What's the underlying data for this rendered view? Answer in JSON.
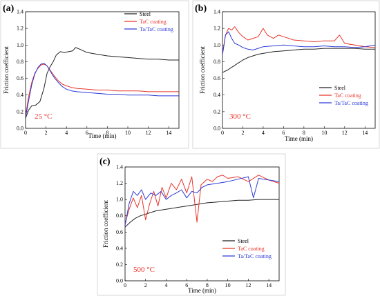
{
  "chart_data": [
    {
      "type": "line",
      "panel": "(a)",
      "xlabel": "Time (min)",
      "ylabel": "Friction coefficient",
      "xlim": [
        0,
        15
      ],
      "ylim": [
        0,
        1.4
      ],
      "xticks": [
        0,
        2,
        4,
        6,
        8,
        10,
        12,
        14
      ],
      "yticks": [
        0.0,
        0.2,
        0.4,
        0.6,
        0.8,
        1.0,
        1.2,
        1.4
      ],
      "annotation": "25 °C",
      "annotation_color": "#e8352b",
      "legend_position": "top-right",
      "series": [
        {
          "name": "Steel",
          "color": "#222222",
          "x": [
            0,
            0.3,
            0.6,
            1.0,
            1.4,
            1.8,
            2.1,
            2.4,
            2.7,
            3.0,
            3.4,
            3.8,
            4.2,
            4.6,
            4.9,
            5.3,
            6,
            7,
            8,
            9,
            10,
            11,
            12,
            13,
            14,
            15
          ],
          "y": [
            0.12,
            0.22,
            0.27,
            0.28,
            0.32,
            0.48,
            0.66,
            0.74,
            0.8,
            0.88,
            0.92,
            0.91,
            0.92,
            0.93,
            0.97,
            0.95,
            0.91,
            0.89,
            0.87,
            0.86,
            0.85,
            0.84,
            0.83,
            0.83,
            0.82,
            0.82
          ]
        },
        {
          "name": "TaC coating",
          "color": "#e8352b",
          "x": [
            0,
            0.3,
            0.6,
            0.9,
            1.2,
            1.5,
            1.8,
            2.1,
            2.4,
            2.8,
            3.2,
            3.6,
            4.0,
            4.5,
            5,
            6,
            7,
            8,
            9,
            10,
            11,
            12,
            13,
            14,
            15
          ],
          "y": [
            0.15,
            0.38,
            0.55,
            0.66,
            0.72,
            0.76,
            0.77,
            0.75,
            0.7,
            0.63,
            0.57,
            0.53,
            0.51,
            0.49,
            0.48,
            0.47,
            0.46,
            0.46,
            0.45,
            0.45,
            0.45,
            0.44,
            0.44,
            0.44,
            0.44
          ]
        },
        {
          "name": "Ta/TaC coating",
          "color": "#2b3ad6",
          "x": [
            0,
            0.3,
            0.6,
            0.9,
            1.2,
            1.5,
            1.8,
            2.1,
            2.4,
            2.8,
            3.2,
            3.6,
            4.0,
            4.5,
            5,
            6,
            7,
            8,
            9,
            10,
            11,
            12,
            13,
            14,
            15
          ],
          "y": [
            0.13,
            0.33,
            0.52,
            0.65,
            0.73,
            0.77,
            0.78,
            0.75,
            0.69,
            0.61,
            0.55,
            0.5,
            0.47,
            0.45,
            0.44,
            0.43,
            0.42,
            0.41,
            0.41,
            0.4,
            0.4,
            0.4,
            0.39,
            0.39,
            0.39
          ]
        }
      ]
    },
    {
      "type": "line",
      "panel": "(b)",
      "xlabel": "Time (min)",
      "ylabel": "Friction coefficient",
      "xlim": [
        0,
        15
      ],
      "ylim": [
        0,
        1.4
      ],
      "xticks": [
        0,
        2,
        4,
        6,
        8,
        10,
        12,
        14
      ],
      "yticks": [
        0.0,
        0.2,
        0.4,
        0.6,
        0.8,
        1.0,
        1.2,
        1.4
      ],
      "annotation": "300 °C",
      "annotation_color": "#e8352b",
      "legend_position": "bottom-left",
      "series": [
        {
          "name": "Steel",
          "color": "#222222",
          "x": [
            0,
            0.5,
            1,
            1.5,
            2,
            2.5,
            3,
            3.5,
            4,
            5,
            6,
            7,
            8,
            9,
            10,
            11,
            12,
            13,
            14,
            15
          ],
          "y": [
            0.67,
            0.7,
            0.74,
            0.78,
            0.82,
            0.85,
            0.87,
            0.89,
            0.9,
            0.92,
            0.93,
            0.94,
            0.95,
            0.95,
            0.96,
            0.96,
            0.96,
            0.96,
            0.95,
            0.95
          ]
        },
        {
          "name": "TaC coating",
          "color": "#e8352b",
          "x": [
            0,
            0.3,
            0.6,
            0.9,
            1.2,
            1.6,
            2.0,
            2.5,
            3.0,
            3.5,
            4.0,
            4.4,
            5,
            5.5,
            6,
            7,
            8,
            9,
            10,
            11,
            11.5,
            12,
            13,
            14,
            15
          ],
          "y": [
            0.9,
            1.12,
            1.2,
            1.18,
            1.22,
            1.15,
            1.1,
            1.06,
            1.08,
            1.1,
            1.2,
            1.12,
            1.08,
            1.12,
            1.1,
            1.06,
            1.05,
            1.04,
            1.05,
            1.05,
            1.12,
            1.02,
            1.0,
            0.98,
            0.97
          ]
        },
        {
          "name": "Ta/TaC coating",
          "color": "#2b3ad6",
          "x": [
            0,
            0.3,
            0.6,
            0.9,
            1.2,
            1.6,
            2.0,
            2.5,
            3.0,
            3.5,
            4.0,
            5,
            6,
            7,
            8,
            9,
            10,
            11,
            12,
            13,
            14,
            15
          ],
          "y": [
            0.88,
            1.12,
            1.16,
            1.08,
            1.02,
            1.0,
            0.97,
            0.95,
            0.94,
            0.96,
            0.98,
            0.99,
            1.0,
            0.99,
            0.98,
            0.98,
            0.99,
            0.98,
            0.98,
            0.97,
            0.98,
            1.0
          ]
        }
      ]
    },
    {
      "type": "line",
      "panel": "(c)",
      "xlabel": "Time (min)",
      "ylabel": "Friction coefficient",
      "xlim": [
        0,
        15
      ],
      "ylim": [
        0,
        1.4
      ],
      "xticks": [
        0,
        2,
        4,
        6,
        8,
        10,
        12,
        14
      ],
      "yticks": [
        0.0,
        0.2,
        0.4,
        0.6,
        0.8,
        1.0,
        1.2,
        1.4
      ],
      "annotation": "500 °C",
      "annotation_color": "#e8352b",
      "legend_position": "bottom-left",
      "series": [
        {
          "name": "Steel",
          "color": "#222222",
          "x": [
            0,
            0.5,
            1,
            1.5,
            2,
            2.5,
            3,
            4,
            5,
            6,
            7,
            8,
            9,
            10,
            11,
            12,
            13,
            14,
            15
          ],
          "y": [
            0.66,
            0.72,
            0.77,
            0.8,
            0.82,
            0.84,
            0.86,
            0.88,
            0.9,
            0.92,
            0.94,
            0.96,
            0.97,
            0.98,
            0.99,
            0.99,
            1.0,
            1.0,
            1.0
          ]
        },
        {
          "name": "TaC coating",
          "color": "#e8352b",
          "x": [
            0,
            0.4,
            0.8,
            1.2,
            1.6,
            2.0,
            2.4,
            2.8,
            3.2,
            3.6,
            4.0,
            4.5,
            5.0,
            5.5,
            6.0,
            6.5,
            7.0,
            7.4,
            8.0,
            8.5,
            9.0,
            9.5,
            10,
            11,
            12,
            13,
            14,
            15
          ],
          "y": [
            0.7,
            0.88,
            1.02,
            0.9,
            1.05,
            0.75,
            0.95,
            1.1,
            0.92,
            1.15,
            1.02,
            1.2,
            1.12,
            1.25,
            1.08,
            1.28,
            0.72,
            1.18,
            1.25,
            1.22,
            1.28,
            1.3,
            1.26,
            1.28,
            1.22,
            1.3,
            1.24,
            1.2
          ]
        },
        {
          "name": "Ta/TaC coating",
          "color": "#2b3ad6",
          "x": [
            0,
            0.4,
            0.8,
            1.2,
            1.6,
            2.0,
            2.5,
            3.0,
            3.5,
            4.0,
            4.5,
            5.0,
            5.5,
            6.0,
            6.5,
            7.0,
            7.5,
            8.0,
            9,
            10,
            11,
            12,
            12.5,
            13,
            14,
            15
          ],
          "y": [
            0.68,
            0.95,
            1.1,
            1.05,
            1.12,
            1.0,
            1.08,
            1.05,
            1.1,
            1.0,
            1.05,
            1.08,
            1.12,
            1.02,
            1.1,
            1.08,
            1.15,
            1.18,
            1.2,
            1.22,
            1.25,
            1.28,
            1.02,
            1.26,
            1.24,
            1.22
          ]
        }
      ]
    }
  ]
}
